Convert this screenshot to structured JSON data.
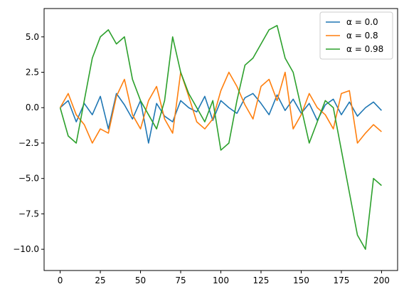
{
  "chart_data": {
    "type": "line",
    "title": "",
    "xlabel": "",
    "ylabel": "",
    "xlim": [
      -10,
      210
    ],
    "ylim": [
      -11.5,
      7.0
    ],
    "grid": false,
    "legend_position": "top-right",
    "x_ticks": [
      0,
      25,
      50,
      75,
      100,
      125,
      150,
      175,
      200
    ],
    "x_tick_labels": [
      "0",
      "25",
      "50",
      "75",
      "100",
      "125",
      "150",
      "175",
      "200"
    ],
    "y_ticks": [
      5.0,
      2.5,
      0.0,
      -2.5,
      -5.0,
      -7.5,
      -10.0
    ],
    "y_tick_labels": [
      "5.0",
      "2.5",
      "0.0",
      "−2.5",
      "−5.0",
      "−7.5",
      "−10.0"
    ],
    "x": [
      0,
      5,
      10,
      15,
      20,
      25,
      30,
      35,
      40,
      45,
      50,
      55,
      60,
      65,
      70,
      75,
      80,
      85,
      90,
      95,
      100,
      105,
      110,
      115,
      120,
      125,
      130,
      135,
      140,
      145,
      150,
      155,
      160,
      165,
      170,
      175,
      180,
      185,
      190,
      195,
      200
    ],
    "series": [
      {
        "name": "α = 0.0",
        "color": "#1f77b4",
        "values": [
          0.0,
          0.5,
          -1.0,
          0.3,
          -0.5,
          0.8,
          -1.5,
          1.0,
          0.2,
          -0.8,
          0.5,
          -2.5,
          0.3,
          -0.6,
          -1.0,
          0.5,
          0.0,
          -0.3,
          0.8,
          -0.9,
          0.5,
          0.0,
          -0.4,
          0.7,
          1.0,
          0.3,
          -0.5,
          0.9,
          -0.2,
          0.6,
          -0.4,
          0.3,
          -0.9,
          0.2,
          0.6,
          -0.5,
          0.4,
          -0.6,
          0.0,
          0.4,
          -0.2
        ]
      },
      {
        "name": "α = 0.8",
        "color": "#ff7f0e",
        "values": [
          0.0,
          1.0,
          -0.5,
          -1.2,
          -2.5,
          -1.5,
          -1.8,
          0.8,
          2.0,
          -0.5,
          -1.5,
          0.5,
          1.5,
          -0.8,
          -1.8,
          2.5,
          0.8,
          -1.0,
          -1.5,
          -0.8,
          1.2,
          2.5,
          1.5,
          0.2,
          -0.8,
          1.5,
          2.0,
          0.5,
          2.5,
          -1.5,
          -0.5,
          1.0,
          0.0,
          -0.5,
          -1.5,
          1.0,
          1.2,
          -2.5,
          -1.8,
          -1.2,
          -1.7
        ]
      },
      {
        "name": "α = 0.98",
        "color": "#2ca02c",
        "values": [
          0.0,
          -2.0,
          -2.5,
          0.5,
          3.5,
          5.0,
          5.5,
          4.5,
          5.0,
          2.0,
          0.5,
          -0.5,
          -1.5,
          0.5,
          5.0,
          2.5,
          1.0,
          0.0,
          -1.0,
          0.5,
          -3.0,
          -2.5,
          0.5,
          3.0,
          3.5,
          4.5,
          5.5,
          5.8,
          3.5,
          2.5,
          0.0,
          -2.5,
          -1.0,
          0.5,
          0.0,
          -3.0,
          -6.0,
          -9.0,
          -10.0,
          -5.0,
          -5.5
        ]
      }
    ]
  }
}
